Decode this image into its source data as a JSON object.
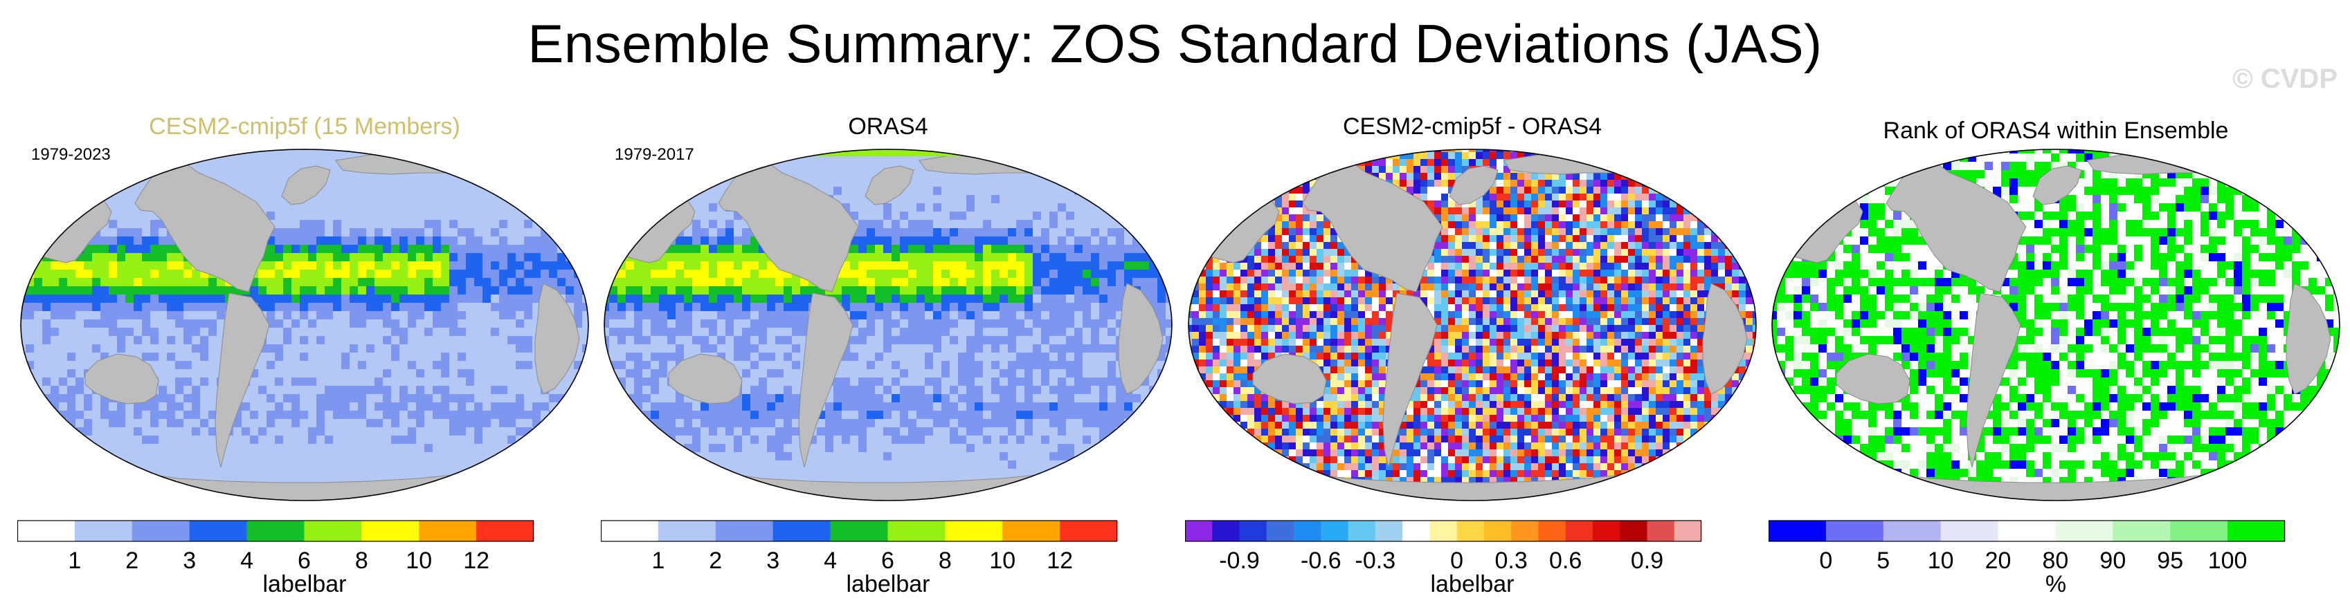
{
  "title": "Ensemble Summary: ZOS Standard Deviations (JAS)",
  "watermark": "© CVDP",
  "panels": [
    {
      "id": "ensemble",
      "title": "CESM2-cmip5f (15 Members)",
      "period": "1979-2023",
      "colorbar": {
        "label": "labelbar",
        "colors": [
          "#ffffff",
          "#b4c8f5",
          "#7d96f0",
          "#1e64f0",
          "#14be28",
          "#96f014",
          "#ffff00",
          "#ffa500",
          "#ff321e"
        ],
        "ticks": [
          "1",
          "2",
          "3",
          "4",
          "6",
          "8",
          "10",
          "12"
        ]
      }
    },
    {
      "id": "reference",
      "title": "ORAS4",
      "period": "1979-2017",
      "colorbar": {
        "label": "labelbar",
        "colors": [
          "#ffffff",
          "#b4c8f5",
          "#7d96f0",
          "#1e64f0",
          "#14be28",
          "#96f014",
          "#ffff00",
          "#ffa500",
          "#ff321e"
        ],
        "ticks": [
          "1",
          "2",
          "3",
          "4",
          "6",
          "8",
          "10",
          "12"
        ]
      }
    },
    {
      "id": "difference",
      "title": "CESM2-cmip5f - ORAS4",
      "period": "",
      "colorbar": {
        "label": "labelbar",
        "colors": [
          "#8c28e6",
          "#2814d2",
          "#1e3cdc",
          "#3c6edc",
          "#1e8cf0",
          "#28aaf5",
          "#64c8f0",
          "#a0d2f0",
          "#ffffff",
          "#fff5a0",
          "#ffd746",
          "#ffbe28",
          "#ff961e",
          "#ff6414",
          "#f0321e",
          "#dc0a0a",
          "#b40000",
          "#e05050",
          "#f0aaaa"
        ],
        "ticks": [
          "-0.9",
          "-0.6",
          "-0.3",
          "0",
          "0.3",
          "0.6",
          "0.9"
        ]
      }
    },
    {
      "id": "rank",
      "title": "Rank of ORAS4 within Ensemble",
      "period": "",
      "colorbar": {
        "label": "%",
        "colors": [
          "#0000ff",
          "#6e6ef5",
          "#b4b4f5",
          "#e6e6fa",
          "#ffffff",
          "#e6fae6",
          "#b4f5b4",
          "#82f082",
          "#00f000"
        ],
        "ticks": [
          "0",
          "5",
          "10",
          "20",
          "80",
          "90",
          "95",
          "100"
        ]
      }
    }
  ]
}
